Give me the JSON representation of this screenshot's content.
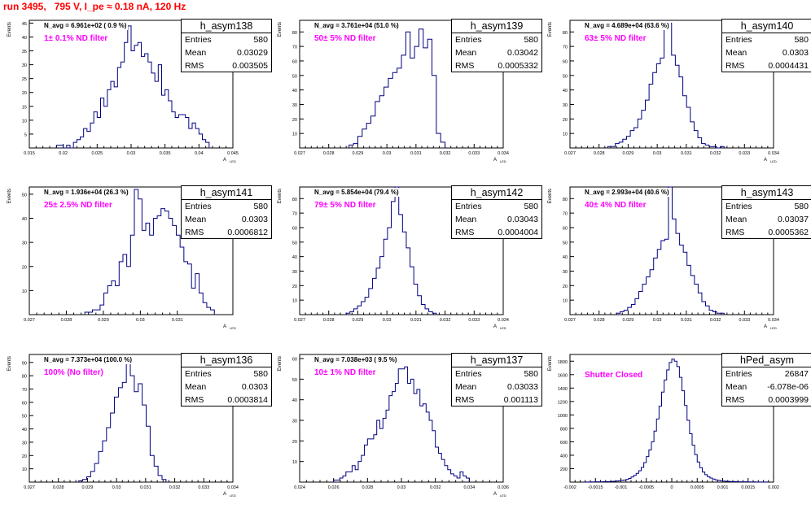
{
  "page_title": "run 3495,   795 V, I_pe ≈ 0.18 nA, 120 Hz",
  "colors": {
    "title": "#ff0000",
    "label": "#ff00ff",
    "line": "#000080"
  },
  "chart_data": [
    {
      "type": "histogram",
      "name": "h_asym138",
      "entries": "580",
      "mean": "0.03029",
      "rms": "0.003505",
      "navg": "N_avg = 6.961e+02 ( 0.9 %)",
      "filter": "1± 0.1% ND filter",
      "ylabel": "Events",
      "xlabel": "A",
      "xsub": "LED",
      "xlim": [
        0.015,
        0.045
      ],
      "ylim": [
        0,
        46
      ],
      "xticks": [
        "0.015",
        "0.02",
        "0.025",
        "0.03",
        "0.035",
        "0.04",
        "0.045"
      ],
      "yticks": [
        5,
        10,
        15,
        20,
        25,
        30,
        35,
        40,
        45
      ],
      "bin_edges_range": [
        0.019,
        0.0415
      ],
      "values": [
        1,
        1,
        0,
        1,
        0,
        2,
        3,
        4,
        7,
        6,
        9,
        13,
        11,
        18,
        15,
        21,
        24,
        22,
        29,
        31,
        38,
        44,
        35,
        37,
        38,
        33,
        34,
        31,
        27,
        24,
        30,
        19,
        21,
        17,
        13,
        11,
        12,
        12,
        11,
        7,
        9,
        7,
        5,
        3,
        2
      ]
    },
    {
      "type": "histogram",
      "name": "h_asym139",
      "entries": "580",
      "mean": "0.03042",
      "rms": "0.0005332",
      "navg": "N_avg = 3.761e+04 (51.0 %)",
      "filter": "50± 5% ND filter",
      "ylabel": "Events",
      "xlabel": "A",
      "xsub": "LED",
      "xlim": [
        0.027,
        0.034
      ],
      "ylim": [
        0,
        88
      ],
      "xticks": [
        "0.027",
        "0.028",
        "0.029",
        "0.03",
        "0.031",
        "0.032",
        "0.033",
        "0.034"
      ],
      "yticks": [
        10,
        20,
        30,
        40,
        50,
        60,
        70,
        80
      ],
      "bin_edges_range": [
        0.0287,
        0.032
      ],
      "values": [
        2,
        3,
        8,
        13,
        17,
        22,
        32,
        36,
        42,
        48,
        52,
        55,
        64,
        80,
        62,
        70,
        82,
        69,
        75,
        50,
        10,
        4
      ]
    },
    {
      "type": "histogram",
      "name": "h_asym140",
      "entries": "580",
      "mean": "0.0303",
      "rms": "0.0004431",
      "navg": "N_avg = 4.689e+04 (63.6 %)",
      "filter": "63± 5% ND filter",
      "ylabel": "Events",
      "xlabel": "A",
      "xsub": "LED",
      "xlim": [
        0.027,
        0.034
      ],
      "ylim": [
        0,
        88
      ],
      "xticks": [
        "0.027",
        "0.028",
        "0.029",
        "0.03",
        "0.031",
        "0.032",
        "0.033",
        "0.034"
      ],
      "yticks": [
        10,
        20,
        30,
        40,
        50,
        60,
        70,
        80
      ],
      "bin_edges_range": [
        0.0283,
        0.0323
      ],
      "values": [
        1,
        1,
        3,
        4,
        6,
        8,
        12,
        14,
        20,
        26,
        33,
        44,
        52,
        58,
        62,
        83,
        86,
        64,
        57,
        49,
        36,
        28,
        18,
        12,
        7,
        3,
        2,
        1,
        1,
        0,
        1
      ]
    },
    {
      "type": "histogram",
      "name": "h_asym141",
      "entries": "580",
      "mean": "0.0303",
      "rms": "0.0006812",
      "navg": "N_avg = 1.936e+04 (26.3 %)",
      "filter": "25± 2.5% ND filter",
      "ylabel": "Events",
      "xlabel": "A",
      "xsub": "LED",
      "xlim": [
        0.027,
        0.0325
      ],
      "ylim": [
        0,
        53
      ],
      "xticks": [
        "0.027",
        "0.028",
        "0.029",
        "0.03",
        "0.031"
      ],
      "yticks": [
        10,
        20,
        30,
        40,
        50
      ],
      "bin_edges_range": [
        0.0285,
        0.032
      ],
      "values": [
        1,
        1,
        2,
        2,
        4,
        9,
        12,
        14,
        12,
        22,
        25,
        20,
        33,
        52,
        48,
        35,
        38,
        33,
        40,
        41,
        44,
        43,
        40,
        37,
        33,
        28,
        22,
        21,
        11,
        17,
        9,
        5,
        3,
        2
      ]
    },
    {
      "type": "histogram",
      "name": "h_asym142",
      "entries": "580",
      "mean": "0.03043",
      "rms": "0.0004004",
      "navg": "N_avg = 5.854e+04 (79.4 %)",
      "filter": "79± 5% ND filter",
      "ylabel": "Events",
      "xlabel": "A",
      "xsub": "LED",
      "xlim": [
        0.027,
        0.034
      ],
      "ylim": [
        0,
        88
      ],
      "xticks": [
        "0.027",
        "0.028",
        "0.029",
        "0.03",
        "0.031",
        "0.032",
        "0.033",
        "0.034"
      ],
      "yticks": [
        10,
        20,
        30,
        40,
        50,
        60,
        70,
        80
      ],
      "bin_edges_range": [
        0.0286,
        0.0317
      ],
      "values": [
        1,
        2,
        4,
        6,
        9,
        12,
        18,
        25,
        32,
        40,
        52,
        60,
        78,
        88,
        69,
        57,
        46,
        33,
        21,
        13,
        7,
        4,
        2,
        1
      ]
    },
    {
      "type": "histogram",
      "name": "h_asym143",
      "entries": "580",
      "mean": "0.03037",
      "rms": "0.0005362",
      "navg": "N_avg = 2.993e+04 (40.6 %)",
      "filter": "40± 4% ND filter",
      "ylabel": "Events",
      "xlabel": "A",
      "xsub": "LED",
      "xlim": [
        0.027,
        0.034
      ],
      "ylim": [
        0,
        88
      ],
      "xticks": [
        "0.027",
        "0.028",
        "0.029",
        "0.03",
        "0.031",
        "0.032",
        "0.033",
        "0.034"
      ],
      "yticks": [
        10,
        20,
        30,
        40,
        50,
        60,
        70,
        80
      ],
      "bin_edges_range": [
        0.0286,
        0.0323
      ],
      "values": [
        1,
        2,
        3,
        5,
        7,
        11,
        16,
        21,
        26,
        31,
        39,
        45,
        51,
        52,
        88,
        66,
        56,
        48,
        43,
        34,
        27,
        21,
        15,
        9,
        6,
        3,
        2,
        1,
        1
      ]
    },
    {
      "type": "histogram",
      "name": "h_asym136",
      "entries": "580",
      "mean": "0.0303",
      "rms": "0.0003814",
      "navg": "N_avg = 7.373e+04 (100.0 %)",
      "filter": "100% (No filter)",
      "ylabel": "Events",
      "xlabel": "A",
      "xsub": "LED",
      "xlim": [
        0.027,
        0.034
      ],
      "ylim": [
        0,
        96
      ],
      "xticks": [
        "0.027",
        "0.028",
        "0.029",
        "0.03",
        "0.031",
        "0.032",
        "0.033",
        "0.034"
      ],
      "yticks": [
        10,
        20,
        30,
        40,
        50,
        60,
        70,
        80,
        90
      ],
      "bin_edges_range": [
        0.0287,
        0.0317
      ],
      "values": [
        1,
        2,
        4,
        8,
        14,
        23,
        31,
        41,
        52,
        64,
        71,
        75,
        95,
        80,
        68,
        74,
        58,
        42,
        20,
        12,
        5,
        2
      ]
    },
    {
      "type": "histogram",
      "name": "h_asym137",
      "entries": "580",
      "mean": "0.03033",
      "rms": "0.001113",
      "navg": "N_avg = 7.038e+03 ( 9.5 %)",
      "filter": "10± 1% ND filter",
      "ylabel": "Events",
      "xlabel": "A",
      "xsub": "LED",
      "xlim": [
        0.024,
        0.036
      ],
      "ylim": [
        0,
        62
      ],
      "xticks": [
        "0.024",
        "0.026",
        "0.028",
        "0.03",
        "0.032",
        "0.034",
        "0.036"
      ],
      "yticks": [
        10,
        20,
        30,
        40,
        50,
        60
      ],
      "bin_edges_range": [
        0.026,
        0.034
      ],
      "values": [
        1,
        1,
        2,
        3,
        5,
        5,
        8,
        6,
        10,
        13,
        18,
        21,
        21,
        23,
        30,
        26,
        31,
        35,
        42,
        44,
        48,
        55,
        55,
        56,
        48,
        50,
        43,
        45,
        37,
        38,
        34,
        30,
        25,
        17,
        14,
        11,
        8,
        6,
        4,
        3,
        2,
        5,
        3,
        2
      ]
    },
    {
      "type": "histogram",
      "name": "hPed_asym",
      "entries": "26847",
      "mean": "-6.078e-06",
      "rms": "0.0003999",
      "navg": "",
      "filter": "Shutter Closed",
      "ylabel": "Events",
      "xlabel": "",
      "xsub": "",
      "xlim": [
        -0.002,
        0.002
      ],
      "ylim": [
        0,
        1900
      ],
      "xticks": [
        "-0.002",
        "-0.0015",
        "-0.001",
        "-0.0005",
        "0",
        "0.0005",
        "0.001",
        "0.0015",
        "0.002"
      ],
      "yticks": [
        200,
        400,
        600,
        800,
        1000,
        1200,
        1400,
        1600,
        1800
      ],
      "bin_edges_range": [
        -0.0017,
        0.0019
      ],
      "values": [
        2,
        2,
        3,
        3,
        4,
        4,
        5,
        6,
        7,
        8,
        10,
        12,
        15,
        20,
        25,
        30,
        40,
        55,
        75,
        100,
        130,
        170,
        220,
        290,
        380,
        480,
        600,
        760,
        940,
        1130,
        1340,
        1520,
        1670,
        1780,
        1830,
        1800,
        1720,
        1560,
        1360,
        1140,
        920,
        720,
        550,
        410,
        300,
        215,
        150,
        110,
        80,
        60,
        45,
        33,
        25,
        20,
        15,
        12,
        10,
        8,
        7,
        6,
        5,
        5,
        4,
        4,
        3,
        3,
        3,
        2,
        2,
        2,
        2,
        2
      ]
    }
  ]
}
